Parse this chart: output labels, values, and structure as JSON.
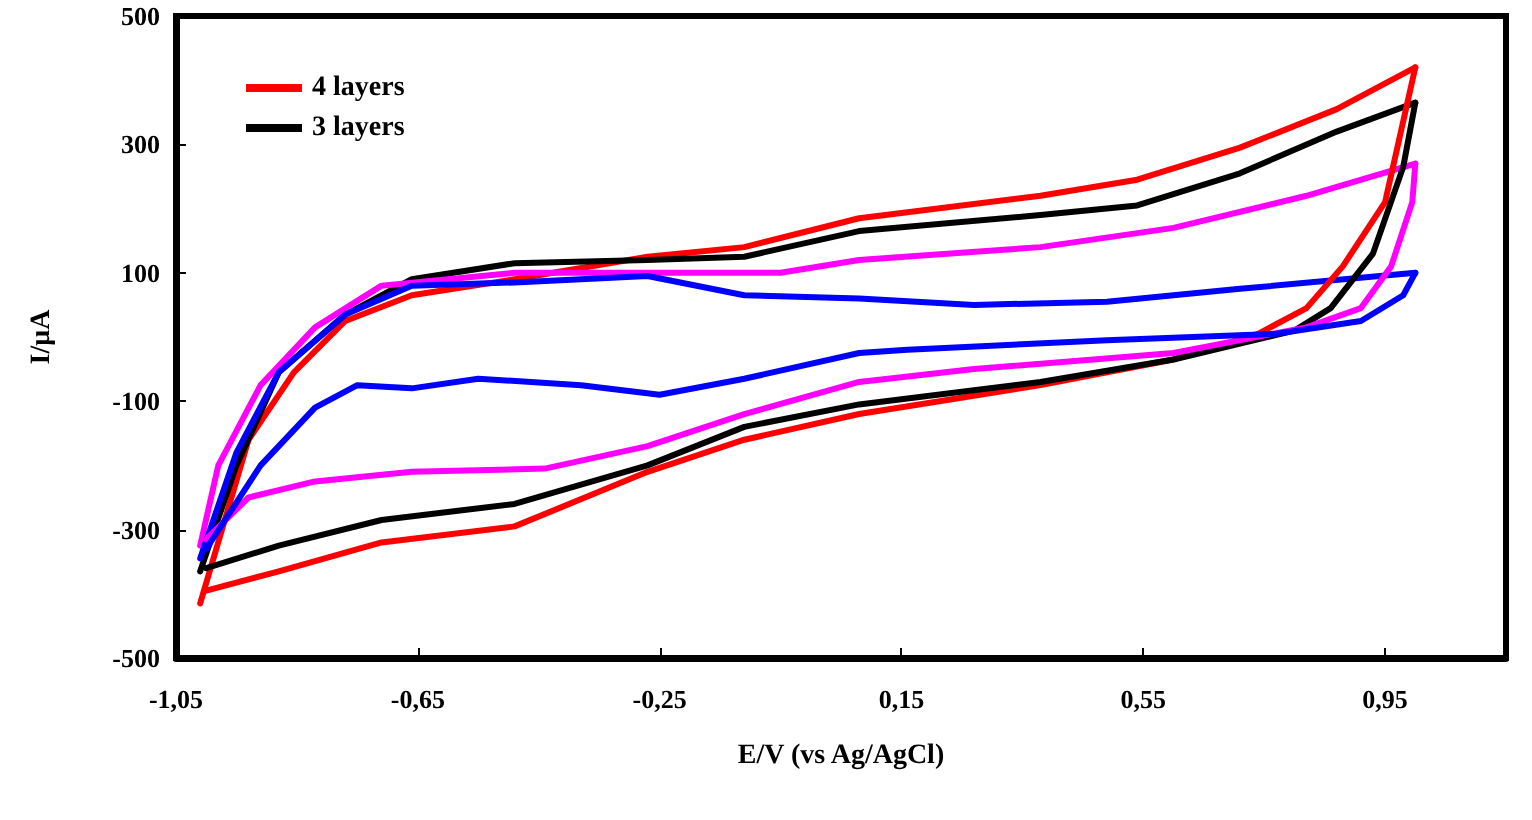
{
  "chart_data": {
    "type": "line",
    "xlabel": "E/V (vs Ag/AgCl)",
    "ylabel": "I/μA",
    "xlim": [
      -1.05,
      1.15
    ],
    "ylim": [
      -500,
      500
    ],
    "xticks": [
      {
        "value": -1.05,
        "label": "-1,05"
      },
      {
        "value": -0.65,
        "label": "-0,65"
      },
      {
        "value": -0.25,
        "label": "-0,25"
      },
      {
        "value": 0.15,
        "label": "0,15"
      },
      {
        "value": 0.55,
        "label": "0,55"
      },
      {
        "value": 0.95,
        "label": "0,95"
      }
    ],
    "yticks": [
      -500,
      -300,
      -100,
      100,
      300,
      500
    ],
    "grid": false,
    "legend": "top left",
    "marker": "none",
    "line_style": "solid",
    "series": [
      {
        "name": "4 layers",
        "color": "#ff0000",
        "x": [
          -1.01,
          -0.93,
          -0.855,
          -0.77,
          -0.66,
          -0.49,
          -0.27,
          -0.11,
          0.08,
          0.38,
          0.54,
          0.71,
          0.87,
          1.0
        ],
        "values": [
          -415,
          -160,
          -55,
          25,
          65,
          90,
          125,
          140,
          185,
          220,
          245,
          295,
          355,
          420
        ]
      },
      {
        "name": "3 layers",
        "color": "#000000",
        "x": [
          -1.01,
          -0.95,
          -0.88,
          -0.77,
          -0.66,
          -0.49,
          -0.27,
          -0.11,
          0.08,
          0.38,
          0.54,
          0.71,
          0.87,
          1.0
        ],
        "values": [
          -365,
          -200,
          -55,
          35,
          90,
          115,
          120,
          125,
          165,
          190,
          205,
          255,
          320,
          365
        ]
      },
      {
        "color": "#ff00ff",
        "x": [
          -1.01,
          -0.98,
          -0.91,
          -0.82,
          -0.71,
          -0.49,
          -0.27,
          -0.05,
          0.08,
          0.38,
          0.6,
          0.82,
          1.0
        ],
        "values": [
          -325,
          -200,
          -75,
          15,
          80,
          100,
          100,
          100,
          120,
          140,
          170,
          220,
          270
        ]
      },
      {
        "color": "#0000ff",
        "x": [
          -1.01,
          -0.95,
          -0.88,
          -0.77,
          -0.66,
          -0.49,
          -0.27,
          -0.11,
          0.08,
          0.27,
          0.49,
          0.71,
          1.0
        ],
        "values": [
          -345,
          -180,
          -55,
          35,
          80,
          85,
          95,
          65,
          60,
          50,
          55,
          75,
          100
        ]
      },
      {
        "color": "#ff0000",
        "x": [
          1.0,
          0.95,
          0.88,
          0.82,
          0.74,
          0.6,
          0.38,
          0.08,
          -0.11,
          -0.27,
          -0.49,
          -0.71,
          -0.88,
          -1.0
        ],
        "values": [
          420,
          210,
          110,
          45,
          5,
          -35,
          -75,
          -120,
          -160,
          -210,
          -295,
          -320,
          -365,
          -395
        ]
      },
      {
        "color": "#000000",
        "x": [
          1.0,
          0.98,
          0.93,
          0.86,
          0.8,
          0.6,
          0.38,
          0.08,
          -0.11,
          -0.27,
          -0.49,
          -0.71,
          -0.88,
          -1.0
        ],
        "values": [
          365,
          265,
          130,
          45,
          10,
          -35,
          -70,
          -105,
          -140,
          -200,
          -260,
          -285,
          -325,
          -360
        ]
      },
      {
        "color": "#ff00ff",
        "x": [
          1.0,
          0.995,
          0.96,
          0.91,
          0.82,
          0.6,
          0.27,
          0.08,
          -0.11,
          -0.27,
          -0.44,
          -0.66,
          -0.82,
          -0.93,
          -1.0
        ],
        "values": [
          270,
          210,
          110,
          45,
          15,
          -25,
          -50,
          -70,
          -120,
          -170,
          -205,
          -210,
          -225,
          -250,
          -315
        ]
      },
      {
        "color": "#0000ff",
        "x": [
          1.0,
          0.98,
          0.91,
          0.77,
          0.49,
          0.16,
          0.08,
          -0.11,
          -0.25,
          -0.38,
          -0.55,
          -0.66,
          -0.75,
          -0.82,
          -0.91,
          -1.0
        ],
        "values": [
          100,
          65,
          25,
          5,
          -5,
          -20,
          -25,
          -65,
          -90,
          -75,
          -65,
          -80,
          -75,
          -110,
          -200,
          -330
        ]
      }
    ]
  }
}
